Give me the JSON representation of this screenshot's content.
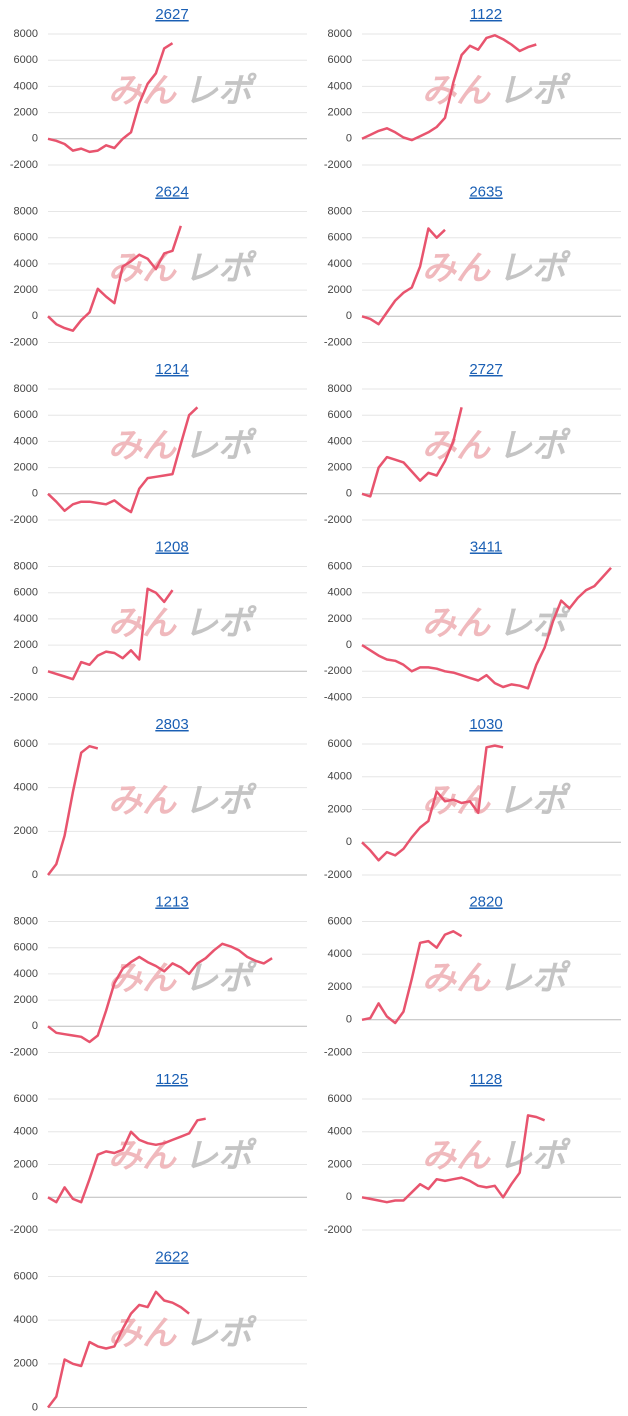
{
  "watermark": [
    "みん",
    "レポ"
  ],
  "chart_data": [
    {
      "type": "line",
      "title": "2627",
      "ylim": [
        -2000,
        8000
      ],
      "yticks": [
        -2000,
        0,
        2000,
        4000,
        6000,
        8000
      ],
      "grid": true,
      "series": [
        {
          "color": "#e8546e",
          "values": [
            0,
            -150,
            -400,
            -900,
            -750,
            -1000,
            -900,
            -500,
            -700,
            0,
            500,
            2700,
            4200,
            5000,
            6900,
            7300
          ]
        }
      ]
    },
    {
      "type": "line",
      "title": "1122",
      "ylim": [
        -2000,
        8000
      ],
      "yticks": [
        -2000,
        0,
        2000,
        4000,
        6000,
        8000
      ],
      "grid": true,
      "series": [
        {
          "color": "#e8546e",
          "values": [
            0,
            300,
            600,
            800,
            500,
            100,
            -100,
            200,
            500,
            900,
            1600,
            4300,
            6400,
            7100,
            6800,
            7700,
            7900,
            7600,
            7200,
            6700,
            7000,
            7200
          ]
        }
      ]
    },
    {
      "type": "line",
      "title": "2624",
      "ylim": [
        -2000,
        8000
      ],
      "yticks": [
        -2000,
        0,
        2000,
        4000,
        6000,
        8000
      ],
      "grid": true,
      "series": [
        {
          "color": "#e8546e",
          "values": [
            0,
            -600,
            -900,
            -1100,
            -300,
            300,
            2100,
            1500,
            1000,
            3800,
            4200,
            4700,
            4400,
            3600,
            4800,
            5000,
            6900
          ]
        }
      ]
    },
    {
      "type": "line",
      "title": "2635",
      "ylim": [
        -2000,
        8000
      ],
      "yticks": [
        -2000,
        0,
        2000,
        4000,
        6000,
        8000
      ],
      "grid": true,
      "series": [
        {
          "color": "#e8546e",
          "values": [
            0,
            -200,
            -600,
            300,
            1200,
            1800,
            2200,
            3800,
            6700,
            6000,
            6600
          ]
        }
      ]
    },
    {
      "type": "line",
      "title": "1214",
      "ylim": [
        -2000,
        8000
      ],
      "yticks": [
        -2000,
        0,
        2000,
        4000,
        6000,
        8000
      ],
      "grid": true,
      "series": [
        {
          "color": "#e8546e",
          "values": [
            0,
            -600,
            -1300,
            -800,
            -600,
            -600,
            -700,
            -800,
            -500,
            -1000,
            -1400,
            400,
            1200,
            1300,
            1400,
            1500,
            3800,
            6000,
            6600
          ]
        }
      ]
    },
    {
      "type": "line",
      "title": "2727",
      "ylim": [
        -2000,
        8000
      ],
      "yticks": [
        -2000,
        0,
        2000,
        4000,
        6000,
        8000
      ],
      "grid": true,
      "series": [
        {
          "color": "#e8546e",
          "values": [
            0,
            -200,
            2000,
            2800,
            2600,
            2400,
            1700,
            1000,
            1600,
            1400,
            2500,
            4000,
            6600
          ]
        }
      ]
    },
    {
      "type": "line",
      "title": "1208",
      "ylim": [
        -2000,
        8000
      ],
      "yticks": [
        -2000,
        0,
        2000,
        4000,
        6000,
        8000
      ],
      "grid": true,
      "series": [
        {
          "color": "#e8546e",
          "values": [
            0,
            -200,
            -400,
            -600,
            700,
            500,
            1200,
            1500,
            1400,
            1000,
            1600,
            900,
            6300,
            6000,
            5300,
            6200
          ]
        }
      ]
    },
    {
      "type": "line",
      "title": "3411",
      "ylim": [
        -4000,
        6000
      ],
      "yticks": [
        -4000,
        -2000,
        0,
        2000,
        4000,
        6000
      ],
      "grid": true,
      "series": [
        {
          "color": "#e8546e",
          "values": [
            0,
            -400,
            -800,
            -1100,
            -1200,
            -1500,
            -2000,
            -1700,
            -1700,
            -1800,
            -2000,
            -2100,
            -2300,
            -2500,
            -2700,
            -2300,
            -2900,
            -3200,
            -3000,
            -3100,
            -3300,
            -1500,
            -200,
            1800,
            3400,
            2800,
            3600,
            4200,
            4500,
            5200,
            5900
          ]
        }
      ]
    },
    {
      "type": "line",
      "title": "2803",
      "ylim": [
        0,
        6000
      ],
      "yticks": [
        0,
        2000,
        4000,
        6000
      ],
      "grid": true,
      "series": [
        {
          "color": "#e8546e",
          "values": [
            0,
            500,
            1800,
            3800,
            5600,
            5900,
            5800
          ]
        }
      ]
    },
    {
      "type": "line",
      "title": "1030",
      "ylim": [
        -2000,
        6000
      ],
      "yticks": [
        -2000,
        0,
        2000,
        4000,
        6000
      ],
      "grid": true,
      "series": [
        {
          "color": "#e8546e",
          "values": [
            0,
            -500,
            -1100,
            -600,
            -800,
            -400,
            300,
            900,
            1300,
            3100,
            2500,
            2600,
            2400,
            2500,
            1800,
            5800,
            5900,
            5800
          ]
        }
      ]
    },
    {
      "type": "line",
      "title": "1213",
      "ylim": [
        -2000,
        8000
      ],
      "yticks": [
        -2000,
        0,
        2000,
        4000,
        6000,
        8000
      ],
      "grid": true,
      "series": [
        {
          "color": "#e8546e",
          "values": [
            0,
            -500,
            -600,
            -700,
            -800,
            -1200,
            -700,
            1200,
            3300,
            4400,
            4900,
            5300,
            4900,
            4600,
            4200,
            4800,
            4500,
            4000,
            4800,
            5200,
            5800,
            6300,
            6100,
            5800,
            5300,
            5000,
            4800,
            5200
          ]
        }
      ]
    },
    {
      "type": "line",
      "title": "2820",
      "ylim": [
        -2000,
        6000
      ],
      "yticks": [
        -2000,
        0,
        2000,
        4000,
        6000
      ],
      "grid": true,
      "series": [
        {
          "color": "#e8546e",
          "values": [
            0,
            100,
            1000,
            200,
            -200,
            500,
            2500,
            4700,
            4800,
            4400,
            5200,
            5400,
            5100
          ]
        }
      ]
    },
    {
      "type": "line",
      "title": "1125",
      "ylim": [
        -2000,
        6000
      ],
      "yticks": [
        -2000,
        0,
        2000,
        4000,
        6000
      ],
      "grid": true,
      "series": [
        {
          "color": "#e8546e",
          "values": [
            0,
            -300,
            600,
            -100,
            -300,
            1100,
            2600,
            2800,
            2700,
            2900,
            4000,
            3500,
            3300,
            3200,
            3300,
            3500,
            3700,
            3900,
            4700,
            4800
          ]
        }
      ]
    },
    {
      "type": "line",
      "title": "1128",
      "ylim": [
        -2000,
        6000
      ],
      "yticks": [
        -2000,
        0,
        2000,
        4000,
        6000
      ],
      "grid": true,
      "series": [
        {
          "color": "#e8546e",
          "values": [
            0,
            -100,
            -200,
            -300,
            -200,
            -200,
            300,
            800,
            500,
            1100,
            1000,
            1100,
            1200,
            1000,
            700,
            600,
            700,
            0,
            800,
            1500,
            5000,
            4900,
            4700
          ]
        }
      ]
    },
    {
      "type": "line",
      "title": "2622",
      "ylim": [
        0,
        6000
      ],
      "yticks": [
        0,
        2000,
        4000,
        6000
      ],
      "grid": true,
      "series": [
        {
          "color": "#e8546e",
          "values": [
            0,
            500,
            2200,
            2000,
            1900,
            3000,
            2800,
            2700,
            2800,
            3600,
            4300,
            4700,
            4600,
            5300,
            4900,
            4800,
            4600,
            4300
          ]
        }
      ]
    }
  ]
}
